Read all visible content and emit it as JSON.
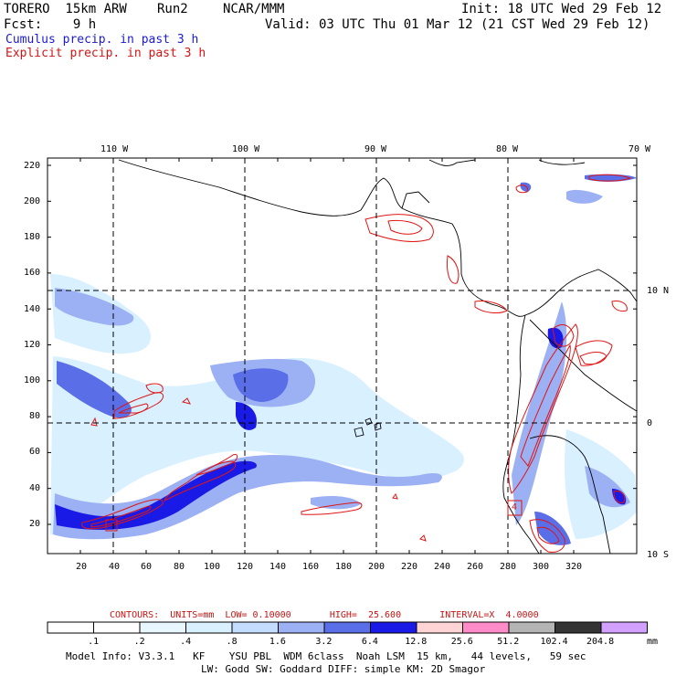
{
  "header": {
    "model": "TORERO  15km ARW",
    "run": "Run2",
    "org": "NCAR/MMM",
    "init": "Init: 18 UTC Wed 29 Feb 12",
    "fcst": "Fcst:    9 h",
    "valid": "Valid: 03 UTC Thu 01 Mar 12 (21 CST Wed 29 Feb 12)"
  },
  "legend": {
    "cumulus": "Cumulus precip. in past 3 h",
    "explicit": "Explicit precip. in past 3 h"
  },
  "axes": {
    "lon_labels": [
      "110 W",
      "100 W",
      "90 W",
      "80 W",
      "70 W"
    ],
    "lat_labels": [
      "10 N",
      "0",
      "10 S"
    ],
    "y_ticks": [
      "220",
      "200",
      "180",
      "160",
      "140",
      "120",
      "100",
      "80",
      "60",
      "40",
      "20"
    ],
    "x_ticks": [
      "20",
      "40",
      "60",
      "80",
      "100",
      "120",
      "140",
      "160",
      "180",
      "200",
      "220",
      "240",
      "260",
      "280",
      "300",
      "320"
    ],
    "label_4": "4"
  },
  "contours_line": "CONTOURS:  UNITS=mm  LOW= 0.10000       HIGH=  25.600       INTERVAL=X  4.0000",
  "colorbar": {
    "labels": [
      ".1",
      ".2",
      ".4",
      ".8",
      "1.6",
      "3.2",
      "6.4",
      "12.8",
      "25.6",
      "51.2",
      "102.4",
      "204.8"
    ],
    "unit": "mm",
    "colors": [
      "#ffffff",
      "#ffffff",
      "#e8f6ff",
      "#d8f0ff",
      "#c4dcff",
      "#9cb0f4",
      "#5a6ee8",
      "#1a1ae6",
      "#ffd4d4",
      "#ff8cc8",
      "#b4b4b4",
      "#343434",
      "#d2a0ff"
    ]
  },
  "footer": {
    "line1": "Model Info: V3.3.1   KF    YSU PBL  WDM 6class  Noah LSM  15 km,   44 levels,   59 sec",
    "line2": "LW: Godd SW: Goddard DIFF: simple KM: 2D Smagor"
  }
}
